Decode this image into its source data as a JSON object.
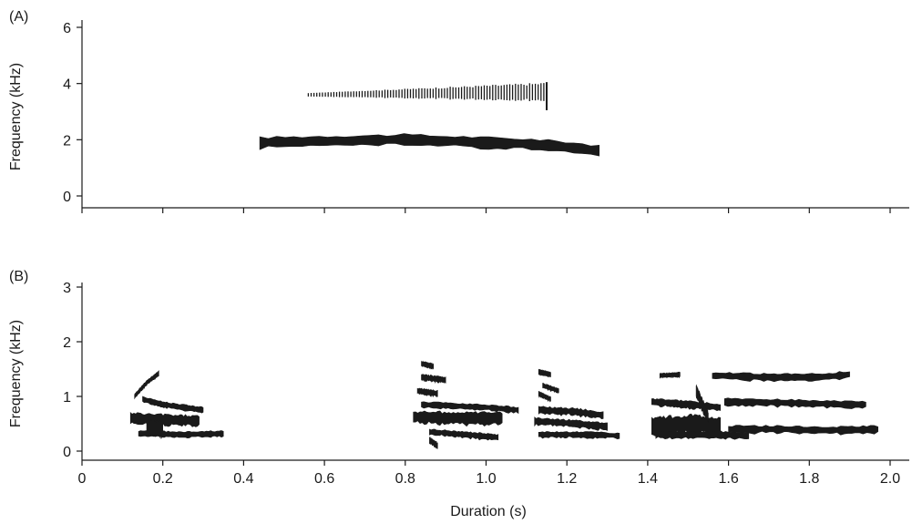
{
  "chart_data": [
    {
      "type": "spectrogram",
      "panel_label": "(A)",
      "ylabel": "Frequency (kHz)",
      "xlabel": "",
      "xlim": [
        0,
        2.05
      ],
      "ylim": [
        0,
        6
      ],
      "xticks": [
        0,
        0.2,
        0.4,
        0.6,
        0.8,
        1.0,
        1.2,
        1.4,
        1.6,
        1.8,
        2.0
      ],
      "xtick_labels": [],
      "yticks": [
        0,
        2,
        4,
        6
      ],
      "ytick_labels": [
        "0",
        "2",
        "4",
        "6"
      ],
      "ink_color": "#1a1a1a",
      "series": [
        {
          "style": "band",
          "x": [
            0.44,
            0.6,
            0.8,
            1.0,
            1.1,
            1.2,
            1.28
          ],
          "y": [
            1.9,
            1.95,
            2.0,
            1.9,
            1.85,
            1.75,
            1.6
          ],
          "thickness": 0.35
        },
        {
          "style": "ticks",
          "x_range": [
            0.56,
            1.15
          ],
          "y_center": [
            3.6,
            3.7
          ],
          "y_halfheight": [
            0.06,
            0.3
          ],
          "x_end_marker": 1.15,
          "y_end_low": 3.05
        }
      ]
    },
    {
      "type": "spectrogram",
      "panel_label": "(B)",
      "ylabel": "Frequency (kHz)",
      "xlabel": "Duration (s)",
      "xlim": [
        0,
        2.05
      ],
      "ylim": [
        0,
        3
      ],
      "xticks": [
        0,
        0.2,
        0.4,
        0.6,
        0.8,
        1.0,
        1.2,
        1.4,
        1.6,
        1.8,
        2.0
      ],
      "xtick_labels": [
        "0",
        "0.2",
        "0.4",
        "0.6",
        "0.8",
        "1.0",
        "1.2",
        "1.4",
        "1.6",
        "1.8",
        "2.0"
      ],
      "yticks": [
        0,
        1,
        2,
        3
      ],
      "ytick_labels": [
        "0",
        "1",
        "2",
        "3"
      ],
      "ink_color": "#1a1a1a",
      "series": [
        {
          "style": "band",
          "x": [
            0.13,
            0.16,
            0.19
          ],
          "y": [
            1.0,
            1.25,
            1.42
          ],
          "thickness": 0.08
        },
        {
          "style": "band",
          "x": [
            0.15,
            0.2,
            0.3
          ],
          "y": [
            0.95,
            0.85,
            0.75
          ],
          "thickness": 0.1
        },
        {
          "style": "band",
          "x": [
            0.12,
            0.18,
            0.29
          ],
          "y": [
            0.6,
            0.58,
            0.55
          ],
          "thickness": 0.18
        },
        {
          "style": "band",
          "x": [
            0.14,
            0.25,
            0.35
          ],
          "y": [
            0.32,
            0.3,
            0.32
          ],
          "thickness": 0.1
        },
        {
          "style": "band",
          "x": [
            0.16,
            0.2
          ],
          "y": [
            0.45,
            0.4
          ],
          "thickness": 0.25
        },
        {
          "style": "band",
          "x": [
            0.84,
            0.87
          ],
          "y": [
            1.6,
            1.55
          ],
          "thickness": 0.08
        },
        {
          "style": "band",
          "x": [
            0.84,
            0.9
          ],
          "y": [
            1.35,
            1.3
          ],
          "thickness": 0.1
        },
        {
          "style": "band",
          "x": [
            0.83,
            0.88
          ],
          "y": [
            1.1,
            1.05
          ],
          "thickness": 0.1
        },
        {
          "style": "band",
          "x": [
            0.84,
            1.0,
            1.08
          ],
          "y": [
            0.85,
            0.8,
            0.75
          ],
          "thickness": 0.1
        },
        {
          "style": "band",
          "x": [
            0.82,
            0.95,
            1.04
          ],
          "y": [
            0.62,
            0.6,
            0.6
          ],
          "thickness": 0.2
        },
        {
          "style": "band",
          "x": [
            0.86,
            0.95,
            1.03
          ],
          "y": [
            0.35,
            0.3,
            0.25
          ],
          "thickness": 0.1
        },
        {
          "style": "band",
          "x": [
            0.86,
            0.88
          ],
          "y": [
            0.2,
            0.1
          ],
          "thickness": 0.1
        },
        {
          "style": "band",
          "x": [
            1.13,
            1.16
          ],
          "y": [
            1.45,
            1.4
          ],
          "thickness": 0.08
        },
        {
          "style": "band",
          "x": [
            1.14,
            1.18
          ],
          "y": [
            1.2,
            1.1
          ],
          "thickness": 0.08
        },
        {
          "style": "band",
          "x": [
            1.13,
            1.16
          ],
          "y": [
            1.05,
            0.95
          ],
          "thickness": 0.08
        },
        {
          "style": "band",
          "x": [
            1.13,
            1.22,
            1.29
          ],
          "y": [
            0.75,
            0.72,
            0.65
          ],
          "thickness": 0.12
        },
        {
          "style": "band",
          "x": [
            1.12,
            1.22,
            1.3
          ],
          "y": [
            0.55,
            0.5,
            0.45
          ],
          "thickness": 0.12
        },
        {
          "style": "band",
          "x": [
            1.13,
            1.25,
            1.33
          ],
          "y": [
            0.3,
            0.3,
            0.28
          ],
          "thickness": 0.1
        },
        {
          "style": "band",
          "x": [
            1.43,
            1.48
          ],
          "y": [
            1.38,
            1.4
          ],
          "thickness": 0.08
        },
        {
          "style": "band",
          "x": [
            1.41,
            1.5,
            1.58
          ],
          "y": [
            0.9,
            0.85,
            0.8
          ],
          "thickness": 0.12
        },
        {
          "style": "band",
          "x": [
            1.41,
            1.5,
            1.58
          ],
          "y": [
            0.45,
            0.5,
            0.45
          ],
          "thickness": 0.3
        },
        {
          "style": "band",
          "x": [
            1.42,
            1.55,
            1.65
          ],
          "y": [
            0.3,
            0.3,
            0.28
          ],
          "thickness": 0.12
        },
        {
          "style": "band",
          "x": [
            1.56,
            1.7,
            1.83,
            1.9
          ],
          "y": [
            1.38,
            1.35,
            1.35,
            1.4
          ],
          "thickness": 0.12
        },
        {
          "style": "band",
          "x": [
            1.59,
            1.75,
            1.9,
            1.94
          ],
          "y": [
            0.9,
            0.88,
            0.85,
            0.85
          ],
          "thickness": 0.12
        },
        {
          "style": "band",
          "x": [
            1.6,
            1.72,
            1.85,
            1.97
          ],
          "y": [
            0.4,
            0.4,
            0.38,
            0.4
          ],
          "thickness": 0.12
        },
        {
          "style": "band",
          "x": [
            1.52,
            1.55
          ],
          "y": [
            1.1,
            0.6
          ],
          "thickness": 0.2
        }
      ]
    }
  ]
}
